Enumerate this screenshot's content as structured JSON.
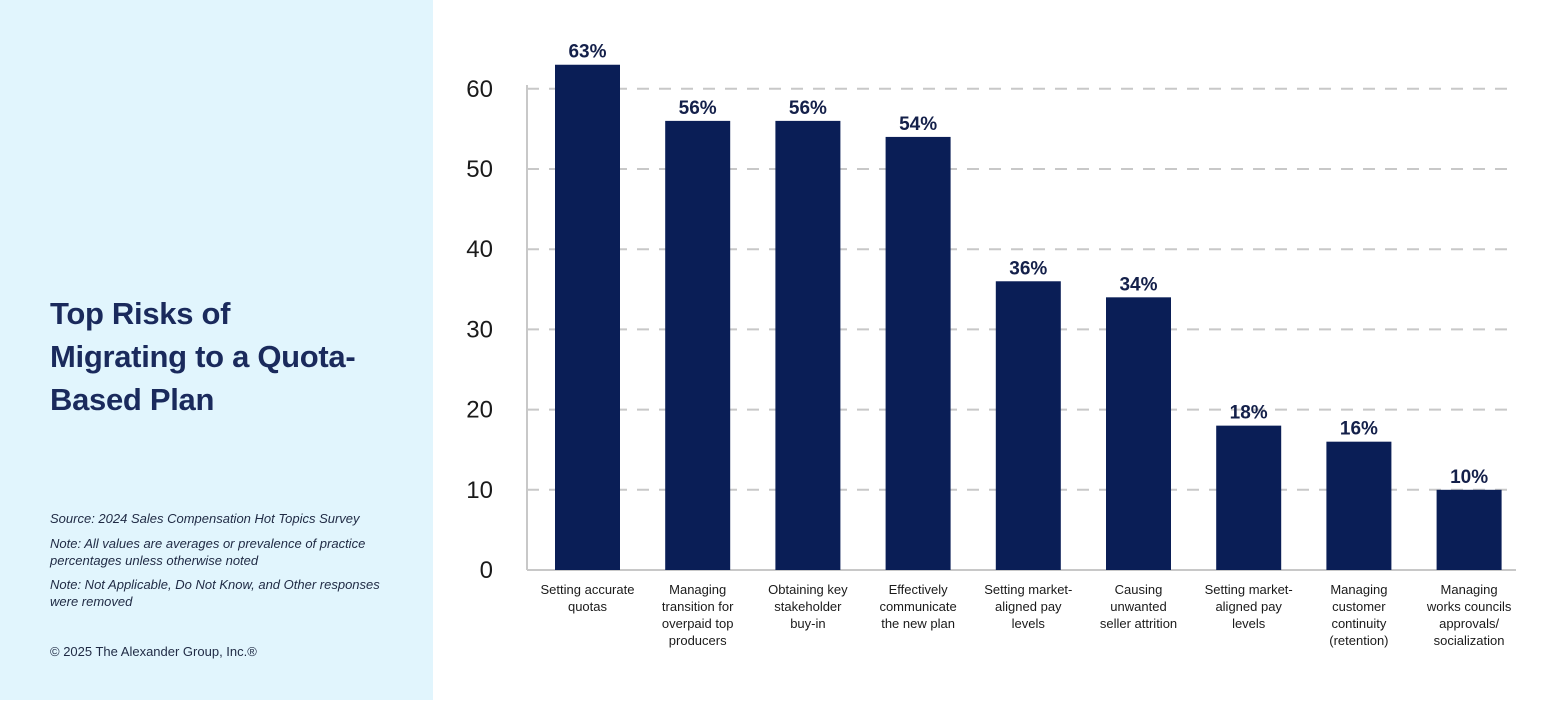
{
  "panel": {
    "title_lines": [
      "Top Risks of",
      "Migrating to a Quota-",
      "Based Plan"
    ],
    "source_note": "Source: 2024 Sales Compensation Hot Topics Survey",
    "note_1": "Note: All values are averages or prevalence of practice percentages unless otherwise noted",
    "note_2": "Note: Not Applicable, Do Not Know, and Other responses were removed",
    "copyright": "© 2025 The Alexander Group, Inc.®"
  },
  "colors": {
    "bar": "#0a1e56",
    "panel_bg": "#e1f5fd",
    "grid": "#c8c8c8"
  },
  "chart_data": {
    "type": "bar",
    "title": "Top Risks of Migrating to a Quota-Based Plan",
    "categories": [
      [
        "Setting accurate",
        "quotas"
      ],
      [
        "Managing",
        "transition for",
        "overpaid top",
        "producers"
      ],
      [
        "Obtaining key",
        "stakeholder",
        "buy-in"
      ],
      [
        "Effectively",
        "communicate",
        "the new plan"
      ],
      [
        "Setting market-",
        "aligned pay",
        "levels"
      ],
      [
        "Causing",
        "unwanted",
        "seller attrition"
      ],
      [
        "Setting market-",
        "aligned pay",
        "levels"
      ],
      [
        "Managing",
        "customer",
        "continuity",
        "(retention)"
      ],
      [
        "Managing",
        "works councils",
        "approvals/",
        "socialization"
      ]
    ],
    "values": [
      63,
      56,
      56,
      54,
      36,
      34,
      18,
      16,
      10
    ],
    "value_labels": [
      "63%",
      "56%",
      "56%",
      "54%",
      "36%",
      "34%",
      "18%",
      "16%",
      "10%"
    ],
    "yticks": [
      0,
      10,
      20,
      30,
      40,
      50,
      60
    ],
    "ylim": [
      0,
      63
    ],
    "grid": true,
    "xlabel": "",
    "ylabel": ""
  }
}
